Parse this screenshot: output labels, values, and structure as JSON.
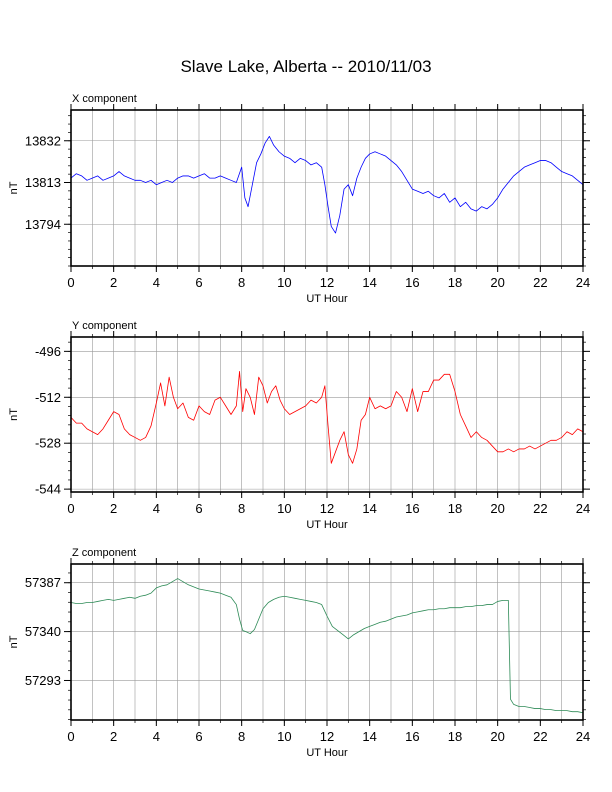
{
  "title": "Slave Lake, Alberta -- 2010/11/03",
  "chart_data": [
    {
      "type": "line",
      "panel_label": "X component",
      "xlabel": "UT Hour",
      "ylabel": "nT",
      "xlim": [
        0,
        24
      ],
      "ylim": [
        13775,
        13846
      ],
      "xticks": [
        0,
        2,
        4,
        6,
        8,
        10,
        12,
        14,
        16,
        18,
        20,
        22,
        24
      ],
      "yticks": [
        13794,
        13813,
        13832
      ],
      "grid": true,
      "color": "#0000ff",
      "series": [
        {
          "x": [
            0,
            0.25,
            0.5,
            0.75,
            1,
            1.25,
            1.5,
            1.75,
            2,
            2.25,
            2.5,
            2.75,
            3,
            3.25,
            3.5,
            3.75,
            4,
            4.25,
            4.5,
            4.75,
            5,
            5.25,
            5.5,
            5.75,
            6,
            6.25,
            6.5,
            6.75,
            7,
            7.25,
            7.5,
            7.75,
            8,
            8.15,
            8.3,
            8.5,
            8.7,
            8.9,
            9.1,
            9.3,
            9.5,
            9.75,
            10,
            10.25,
            10.5,
            10.75,
            11,
            11.25,
            11.5,
            11.75,
            11.9,
            12.05,
            12.2,
            12.4,
            12.6,
            12.8,
            13.0,
            13.2,
            13.4,
            13.6,
            13.8,
            14.0,
            14.25,
            14.5,
            14.75,
            15,
            15.25,
            15.5,
            15.75,
            16,
            16.25,
            16.5,
            16.75,
            17,
            17.25,
            17.5,
            17.75,
            18,
            18.25,
            18.5,
            18.75,
            19,
            19.25,
            19.5,
            19.75,
            20,
            20.25,
            20.5,
            20.75,
            21,
            21.25,
            21.5,
            21.75,
            22,
            22.25,
            22.5,
            22.75,
            23,
            23.25,
            23.5,
            23.75,
            24
          ],
          "y": [
            13815,
            13817,
            13816,
            13814,
            13815,
            13816,
            13814,
            13815,
            13816,
            13818,
            13816,
            13815,
            13814,
            13814,
            13813,
            13814,
            13812,
            13813,
            13814,
            13813,
            13815,
            13816,
            13816,
            13815,
            13816,
            13817,
            13815,
            13815,
            13816,
            13815,
            13814,
            13813,
            13820,
            13806,
            13802,
            13812,
            13822,
            13826,
            13831,
            13834,
            13830,
            13827,
            13825,
            13824,
            13822,
            13824,
            13823,
            13821,
            13822,
            13820,
            13812,
            13802,
            13793,
            13790,
            13798,
            13810,
            13812,
            13807,
            13815,
            13820,
            13824,
            13826,
            13827,
            13826,
            13825,
            13823,
            13821,
            13818,
            13814,
            13810,
            13809,
            13808,
            13809,
            13807,
            13806,
            13808,
            13804,
            13806,
            13802,
            13804,
            13801,
            13800,
            13802,
            13801,
            13803,
            13806,
            13810,
            13813,
            13816,
            13818,
            13820,
            13821,
            13822,
            13823,
            13823,
            13822,
            13820,
            13818,
            13817,
            13816,
            13814,
            13812
          ]
        }
      ]
    },
    {
      "type": "line",
      "panel_label": "Y component",
      "xlabel": "UT Hour",
      "ylabel": "nT",
      "xlim": [
        0,
        24
      ],
      "ylim": [
        -545,
        -491
      ],
      "xticks": [
        0,
        2,
        4,
        6,
        8,
        10,
        12,
        14,
        16,
        18,
        20,
        22,
        24
      ],
      "yticks": [
        -496,
        -512,
        -528,
        -544
      ],
      "grid": true,
      "color": "#ff0000",
      "series": [
        {
          "x": [
            0,
            0.25,
            0.5,
            0.75,
            1,
            1.25,
            1.5,
            1.75,
            2,
            2.25,
            2.5,
            2.75,
            3,
            3.25,
            3.5,
            3.75,
            4,
            4.2,
            4.4,
            4.6,
            4.8,
            5,
            5.25,
            5.5,
            5.75,
            6,
            6.25,
            6.5,
            6.75,
            7,
            7.25,
            7.5,
            7.75,
            7.9,
            8.05,
            8.2,
            8.4,
            8.6,
            8.8,
            9.0,
            9.2,
            9.4,
            9.6,
            9.8,
            10,
            10.25,
            10.5,
            10.75,
            11,
            11.25,
            11.5,
            11.75,
            11.9,
            12.05,
            12.2,
            12.4,
            12.6,
            12.8,
            13.0,
            13.2,
            13.4,
            13.6,
            13.8,
            14.0,
            14.25,
            14.5,
            14.75,
            15,
            15.25,
            15.5,
            15.75,
            16,
            16.25,
            16.5,
            16.75,
            17,
            17.25,
            17.5,
            17.75,
            18,
            18.25,
            18.5,
            18.75,
            19,
            19.25,
            19.5,
            19.75,
            20,
            20.25,
            20.5,
            20.75,
            21,
            21.25,
            21.5,
            21.75,
            22,
            22.25,
            22.5,
            22.75,
            23,
            23.25,
            23.5,
            23.75,
            24
          ],
          "y": [
            -519,
            -521,
            -521,
            -523,
            -524,
            -525,
            -523,
            -520,
            -517,
            -518,
            -523,
            -525,
            -526,
            -527,
            -526,
            -522,
            -514,
            -507,
            -515,
            -505,
            -512,
            -516,
            -514,
            -519,
            -520,
            -515,
            -517,
            -518,
            -513,
            -512,
            -515,
            -518,
            -515,
            -503,
            -517,
            -509,
            -512,
            -518,
            -505,
            -508,
            -514,
            -510,
            -508,
            -513,
            -516,
            -518,
            -517,
            -516,
            -515,
            -513,
            -514,
            -512,
            -508,
            -522,
            -535,
            -531,
            -527,
            -524,
            -532,
            -535,
            -530,
            -520,
            -518,
            -512,
            -516,
            -515,
            -516,
            -515,
            -510,
            -512,
            -517,
            -509,
            -517,
            -510,
            -510,
            -506,
            -506,
            -504,
            -504,
            -510,
            -518,
            -522,
            -526,
            -524,
            -526,
            -527,
            -529,
            -531,
            -531,
            -530,
            -531,
            -530,
            -530,
            -529,
            -530,
            -529,
            -528,
            -527,
            -527,
            -526,
            -524,
            -525,
            -523,
            -524
          ]
        }
      ]
    },
    {
      "type": "line",
      "panel_label": "Z component",
      "xlabel": "UT Hour",
      "ylabel": "nT",
      "xlim": [
        0,
        24
      ],
      "ylim": [
        57255,
        57405
      ],
      "xticks": [
        0,
        2,
        4,
        6,
        8,
        10,
        12,
        14,
        16,
        18,
        20,
        22,
        24
      ],
      "yticks": [
        57293,
        57340,
        57387
      ],
      "grid": true,
      "color": "#2e8b57",
      "series": [
        {
          "x": [
            0,
            0.25,
            0.5,
            0.75,
            1,
            1.25,
            1.5,
            1.75,
            2,
            2.25,
            2.5,
            2.75,
            3,
            3.25,
            3.5,
            3.75,
            4,
            4.25,
            4.5,
            4.75,
            5,
            5.25,
            5.5,
            5.75,
            6,
            6.25,
            6.5,
            6.75,
            7,
            7.25,
            7.5,
            7.75,
            7.9,
            8.05,
            8.2,
            8.4,
            8.6,
            8.8,
            9.0,
            9.25,
            9.5,
            9.75,
            10,
            10.25,
            10.5,
            10.75,
            11,
            11.25,
            11.5,
            11.75,
            12,
            12.25,
            12.5,
            12.75,
            13.0,
            13.25,
            13.5,
            13.75,
            14,
            14.25,
            14.5,
            14.75,
            15,
            15.25,
            15.5,
            15.75,
            16,
            16.25,
            16.5,
            16.75,
            17,
            17.25,
            17.5,
            17.75,
            18,
            18.25,
            18.5,
            18.75,
            19,
            19.25,
            19.5,
            19.75,
            20,
            20.25,
            20.5,
            20.6,
            20.75,
            21,
            21.25,
            21.5,
            21.75,
            22,
            22.25,
            22.5,
            22.75,
            23,
            23.25,
            23.5,
            23.75,
            24
          ],
          "y": [
            57368,
            57367,
            57367,
            57368,
            57368,
            57369,
            57370,
            57371,
            57370,
            57371,
            57372,
            57373,
            57372,
            57374,
            57375,
            57377,
            57382,
            57384,
            57385,
            57388,
            57391,
            57388,
            57385,
            57383,
            57381,
            57380,
            57379,
            57378,
            57377,
            57375,
            57373,
            57366,
            57352,
            57341,
            57340,
            57338,
            57342,
            57352,
            57362,
            57368,
            57371,
            57373,
            57374,
            57373,
            57372,
            57371,
            57370,
            57369,
            57368,
            57366,
            57355,
            57345,
            57341,
            57337,
            57333,
            57337,
            57340,
            57343,
            57345,
            57347,
            57349,
            57350,
            57352,
            57354,
            57355,
            57356,
            57358,
            57359,
            57360,
            57361,
            57361,
            57362,
            57362,
            57363,
            57363,
            57363,
            57364,
            57364,
            57365,
            57365,
            57366,
            57366,
            57369,
            57370,
            57370,
            57275,
            57270,
            57268,
            57268,
            57267,
            57266,
            57266,
            57265,
            57265,
            57264,
            57264,
            57264,
            57263,
            57263,
            57262
          ]
        }
      ]
    }
  ]
}
